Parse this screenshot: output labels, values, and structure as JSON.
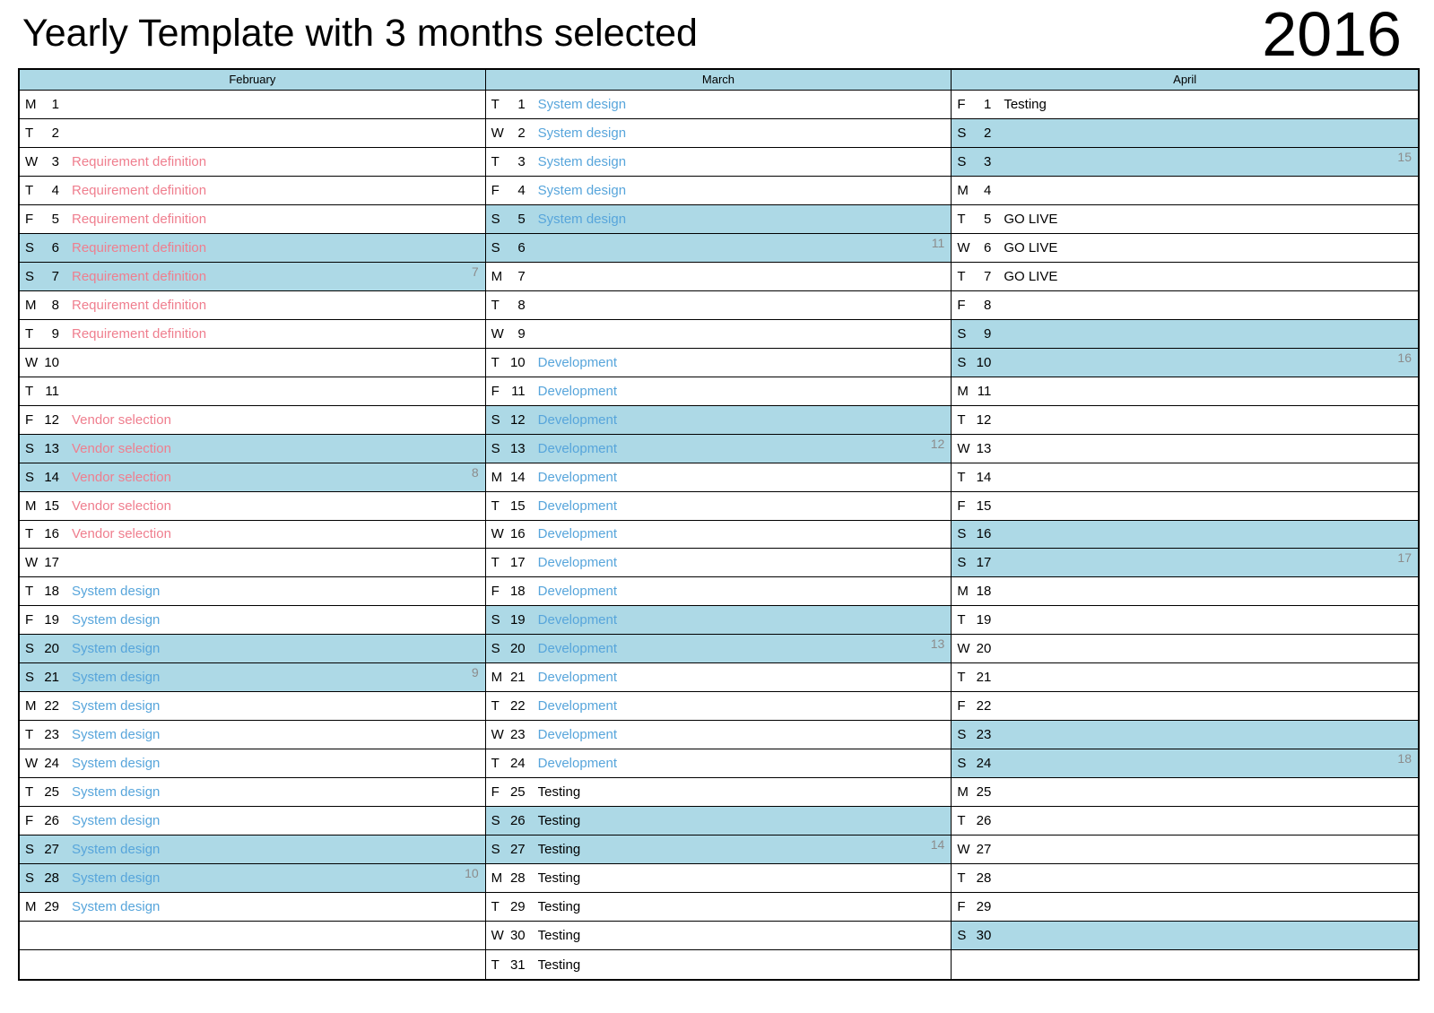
{
  "title": "Yearly Template with 3 months selected",
  "year": "2016",
  "palette": {
    "highlight_blue": "#ADD9E6",
    "event_pink": "#EF7E8E",
    "event_blue": "#57A5DB",
    "event_black": "#000000",
    "week_number_gray": "#8C8C8C",
    "border_black": "#000000"
  },
  "months": [
    {
      "name": "February",
      "days": [
        {
          "letter": "M",
          "num": "1"
        },
        {
          "letter": "T",
          "num": "2"
        },
        {
          "letter": "W",
          "num": "3",
          "event": "Requirement definition",
          "color": "pink"
        },
        {
          "letter": "T",
          "num": "4",
          "event": "Requirement definition",
          "color": "pink"
        },
        {
          "letter": "F",
          "num": "5",
          "event": "Requirement definition",
          "color": "pink"
        },
        {
          "letter": "S",
          "num": "6",
          "event": "Requirement definition",
          "color": "pink",
          "weekend": true
        },
        {
          "letter": "S",
          "num": "7",
          "event": "Requirement definition",
          "color": "pink",
          "weekend": true,
          "week": "7"
        },
        {
          "letter": "M",
          "num": "8",
          "event": "Requirement definition",
          "color": "pink"
        },
        {
          "letter": "T",
          "num": "9",
          "event": "Requirement definition",
          "color": "pink"
        },
        {
          "letter": "W",
          "num": "10"
        },
        {
          "letter": "T",
          "num": "11"
        },
        {
          "letter": "F",
          "num": "12",
          "event": "Vendor selection",
          "color": "pink"
        },
        {
          "letter": "S",
          "num": "13",
          "event": "Vendor selection",
          "color": "pink",
          "weekend": true
        },
        {
          "letter": "S",
          "num": "14",
          "event": "Vendor selection",
          "color": "pink",
          "weekend": true,
          "week": "8"
        },
        {
          "letter": "M",
          "num": "15",
          "event": "Vendor selection",
          "color": "pink"
        },
        {
          "letter": "T",
          "num": "16",
          "event": "Vendor selection",
          "color": "pink"
        },
        {
          "letter": "W",
          "num": "17"
        },
        {
          "letter": "T",
          "num": "18",
          "event": "System design",
          "color": "blue"
        },
        {
          "letter": "F",
          "num": "19",
          "event": "System design",
          "color": "blue"
        },
        {
          "letter": "S",
          "num": "20",
          "event": "System design",
          "color": "blue",
          "weekend": true
        },
        {
          "letter": "S",
          "num": "21",
          "event": "System design",
          "color": "blue",
          "weekend": true,
          "week": "9"
        },
        {
          "letter": "M",
          "num": "22",
          "event": "System design",
          "color": "blue"
        },
        {
          "letter": "T",
          "num": "23",
          "event": "System design",
          "color": "blue"
        },
        {
          "letter": "W",
          "num": "24",
          "event": "System design",
          "color": "blue"
        },
        {
          "letter": "T",
          "num": "25",
          "event": "System design",
          "color": "blue"
        },
        {
          "letter": "F",
          "num": "26",
          "event": "System design",
          "color": "blue"
        },
        {
          "letter": "S",
          "num": "27",
          "event": "System design",
          "color": "blue",
          "weekend": true
        },
        {
          "letter": "S",
          "num": "28",
          "event": "System design",
          "color": "blue",
          "weekend": true,
          "week": "10"
        },
        {
          "letter": "M",
          "num": "29",
          "event": "System design",
          "color": "blue"
        },
        {},
        {}
      ]
    },
    {
      "name": "March",
      "days": [
        {
          "letter": "T",
          "num": "1",
          "event": "System design",
          "color": "blue"
        },
        {
          "letter": "W",
          "num": "2",
          "event": "System design",
          "color": "blue"
        },
        {
          "letter": "T",
          "num": "3",
          "event": "System design",
          "color": "blue"
        },
        {
          "letter": "F",
          "num": "4",
          "event": "System design",
          "color": "blue"
        },
        {
          "letter": "S",
          "num": "5",
          "event": "System design",
          "color": "blue",
          "weekend": true
        },
        {
          "letter": "S",
          "num": "6",
          "weekend": true,
          "week": "11"
        },
        {
          "letter": "M",
          "num": "7"
        },
        {
          "letter": "T",
          "num": "8"
        },
        {
          "letter": "W",
          "num": "9"
        },
        {
          "letter": "T",
          "num": "10",
          "event": "Development",
          "color": "blue"
        },
        {
          "letter": "F",
          "num": "11",
          "event": "Development",
          "color": "blue"
        },
        {
          "letter": "S",
          "num": "12",
          "event": "Development",
          "color": "blue",
          "weekend": true
        },
        {
          "letter": "S",
          "num": "13",
          "event": "Development",
          "color": "blue",
          "weekend": true,
          "week": "12"
        },
        {
          "letter": "M",
          "num": "14",
          "event": "Development",
          "color": "blue"
        },
        {
          "letter": "T",
          "num": "15",
          "event": "Development",
          "color": "blue"
        },
        {
          "letter": "W",
          "num": "16",
          "event": "Development",
          "color": "blue"
        },
        {
          "letter": "T",
          "num": "17",
          "event": "Development",
          "color": "blue"
        },
        {
          "letter": "F",
          "num": "18",
          "event": "Development",
          "color": "blue"
        },
        {
          "letter": "S",
          "num": "19",
          "event": "Development",
          "color": "blue",
          "weekend": true
        },
        {
          "letter": "S",
          "num": "20",
          "event": "Development",
          "color": "blue",
          "weekend": true,
          "week": "13"
        },
        {
          "letter": "M",
          "num": "21",
          "event": "Development",
          "color": "blue"
        },
        {
          "letter": "T",
          "num": "22",
          "event": "Development",
          "color": "blue"
        },
        {
          "letter": "W",
          "num": "23",
          "event": "Development",
          "color": "blue"
        },
        {
          "letter": "T",
          "num": "24",
          "event": "Development",
          "color": "blue"
        },
        {
          "letter": "F",
          "num": "25",
          "event": "Testing",
          "color": "black"
        },
        {
          "letter": "S",
          "num": "26",
          "event": "Testing",
          "color": "black",
          "weekend": true
        },
        {
          "letter": "S",
          "num": "27",
          "event": "Testing",
          "color": "black",
          "weekend": true,
          "week": "14"
        },
        {
          "letter": "M",
          "num": "28",
          "event": "Testing",
          "color": "black"
        },
        {
          "letter": "T",
          "num": "29",
          "event": "Testing",
          "color": "black"
        },
        {
          "letter": "W",
          "num": "30",
          "event": "Testing",
          "color": "black"
        },
        {
          "letter": "T",
          "num": "31",
          "event": "Testing",
          "color": "black"
        }
      ]
    },
    {
      "name": "April",
      "days": [
        {
          "letter": "F",
          "num": "1",
          "event": "Testing",
          "color": "black"
        },
        {
          "letter": "S",
          "num": "2",
          "weekend": true
        },
        {
          "letter": "S",
          "num": "3",
          "weekend": true,
          "week": "15"
        },
        {
          "letter": "M",
          "num": "4"
        },
        {
          "letter": "T",
          "num": "5",
          "event": "GO LIVE",
          "color": "black"
        },
        {
          "letter": "W",
          "num": "6",
          "event": "GO LIVE",
          "color": "black"
        },
        {
          "letter": "T",
          "num": "7",
          "event": "GO LIVE",
          "color": "black"
        },
        {
          "letter": "F",
          "num": "8"
        },
        {
          "letter": "S",
          "num": "9",
          "weekend": true
        },
        {
          "letter": "S",
          "num": "10",
          "weekend": true,
          "week": "16"
        },
        {
          "letter": "M",
          "num": "11"
        },
        {
          "letter": "T",
          "num": "12"
        },
        {
          "letter": "W",
          "num": "13"
        },
        {
          "letter": "T",
          "num": "14"
        },
        {
          "letter": "F",
          "num": "15"
        },
        {
          "letter": "S",
          "num": "16",
          "weekend": true
        },
        {
          "letter": "S",
          "num": "17",
          "weekend": true,
          "week": "17"
        },
        {
          "letter": "M",
          "num": "18"
        },
        {
          "letter": "T",
          "num": "19"
        },
        {
          "letter": "W",
          "num": "20"
        },
        {
          "letter": "T",
          "num": "21"
        },
        {
          "letter": "F",
          "num": "22"
        },
        {
          "letter": "S",
          "num": "23",
          "weekend": true
        },
        {
          "letter": "S",
          "num": "24",
          "weekend": true,
          "week": "18"
        },
        {
          "letter": "M",
          "num": "25"
        },
        {
          "letter": "T",
          "num": "26"
        },
        {
          "letter": "W",
          "num": "27"
        },
        {
          "letter": "T",
          "num": "28"
        },
        {
          "letter": "F",
          "num": "29"
        },
        {
          "letter": "S",
          "num": "30",
          "weekend": true
        },
        {}
      ]
    }
  ]
}
